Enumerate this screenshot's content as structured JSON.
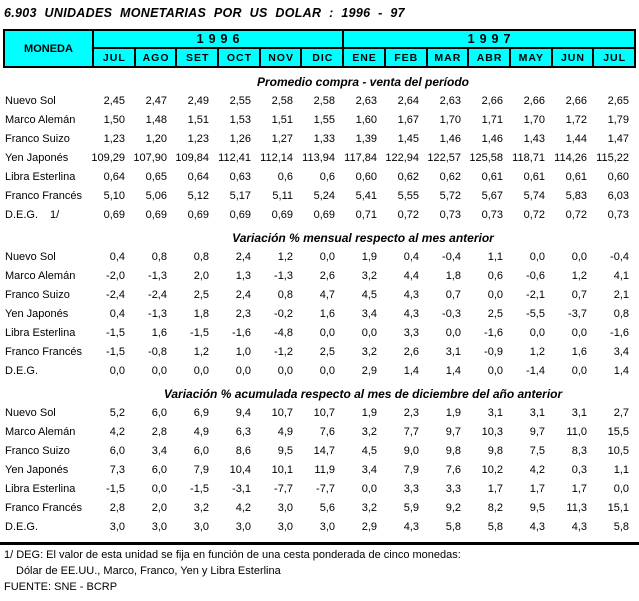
{
  "title": "6.903 UNIDADES MONETARIAS POR US DOLAR : 1996 - 97",
  "colors": {
    "header_bg": "#00FFFF",
    "border": "#000000",
    "text": "#000000"
  },
  "header": {
    "moneda_label": "MONEDA",
    "year_groups": [
      {
        "year": "1996",
        "months": [
          "JUL",
          "AGO",
          "SET",
          "OCT",
          "NOV",
          "DIC"
        ]
      },
      {
        "year": "1997",
        "months": [
          "ENE",
          "FEB",
          "MAR",
          "ABR",
          "MAY",
          "JUN",
          "JUL"
        ]
      }
    ]
  },
  "sections": [
    {
      "title": "Promedio compra - venta del período",
      "rows": [
        {
          "label": "Nuevo Sol",
          "values": [
            "2,45",
            "2,47",
            "2,49",
            "2,55",
            "2,58",
            "2,58",
            "2,63",
            "2,64",
            "2,63",
            "2,66",
            "2,66",
            "2,66",
            "2,65"
          ]
        },
        {
          "label": "Marco Alemán",
          "values": [
            "1,50",
            "1,48",
            "1,51",
            "1,53",
            "1,51",
            "1,55",
            "1,60",
            "1,67",
            "1,70",
            "1,71",
            "1,70",
            "1,72",
            "1,79"
          ]
        },
        {
          "label": "Franco Suizo",
          "values": [
            "1,23",
            "1,20",
            "1,23",
            "1,26",
            "1,27",
            "1,33",
            "1,39",
            "1,45",
            "1,46",
            "1,46",
            "1,43",
            "1,44",
            "1,47"
          ]
        },
        {
          "label": "Yen Japonés",
          "values": [
            "109,29",
            "107,90",
            "109,84",
            "112,41",
            "112,14",
            "113,94",
            "117,84",
            "122,94",
            "122,57",
            "125,58",
            "118,71",
            "114,26",
            "115,22"
          ]
        },
        {
          "label": "Libra Esterlina",
          "values": [
            "0,64",
            "0,65",
            "0,64",
            "0,63",
            "0,6",
            "0,6",
            "0,60",
            "0,62",
            "0,62",
            "0,61",
            "0,61",
            "0,61",
            "0,60"
          ]
        },
        {
          "label": "Franco Francés",
          "values": [
            "5,10",
            "5,06",
            "5,12",
            "5,17",
            "5,11",
            "5,24",
            "5,41",
            "5,55",
            "5,72",
            "5,67",
            "5,74",
            "5,83",
            "6,03"
          ]
        },
        {
          "label": "D.E.G.",
          "note": "1/",
          "values": [
            "0,69",
            "0,69",
            "0,69",
            "0,69",
            "0,69",
            "0,69",
            "0,71",
            "0,72",
            "0,73",
            "0,73",
            "0,72",
            "0,72",
            "0,73"
          ]
        }
      ]
    },
    {
      "title": "Variación % mensual respecto al mes anterior",
      "rows": [
        {
          "label": "Nuevo Sol",
          "values": [
            "0,4",
            "0,8",
            "0,8",
            "2,4",
            "1,2",
            "0,0",
            "1,9",
            "0,4",
            "-0,4",
            "1,1",
            "0,0",
            "0,0",
            "-0,4"
          ]
        },
        {
          "label": "Marco Alemán",
          "values": [
            "-2,0",
            "-1,3",
            "2,0",
            "1,3",
            "-1,3",
            "2,6",
            "3,2",
            "4,4",
            "1,8",
            "0,6",
            "-0,6",
            "1,2",
            "4,1"
          ]
        },
        {
          "label": "Franco Suizo",
          "values": [
            "-2,4",
            "-2,4",
            "2,5",
            "2,4",
            "0,8",
            "4,7",
            "4,5",
            "4,3",
            "0,7",
            "0,0",
            "-2,1",
            "0,7",
            "2,1"
          ]
        },
        {
          "label": "Yen Japonés",
          "values": [
            "0,4",
            "-1,3",
            "1,8",
            "2,3",
            "-0,2",
            "1,6",
            "3,4",
            "4,3",
            "-0,3",
            "2,5",
            "-5,5",
            "-3,7",
            "0,8"
          ]
        },
        {
          "label": "Libra Esterlina",
          "values": [
            "-1,5",
            "1,6",
            "-1,5",
            "-1,6",
            "-4,8",
            "0,0",
            "0,0",
            "3,3",
            "0,0",
            "-1,6",
            "0,0",
            "0,0",
            "-1,6"
          ]
        },
        {
          "label": "Franco Francés",
          "values": [
            "-1,5",
            "-0,8",
            "1,2",
            "1,0",
            "-1,2",
            "2,5",
            "3,2",
            "2,6",
            "3,1",
            "-0,9",
            "1,2",
            "1,6",
            "3,4"
          ]
        },
        {
          "label": "D.E.G.",
          "values": [
            "0,0",
            "0,0",
            "0,0",
            "0,0",
            "0,0",
            "0,0",
            "2,9",
            "1,4",
            "1,4",
            "0,0",
            "-1,4",
            "0,0",
            "1,4"
          ]
        }
      ]
    },
    {
      "title": "Variación % acumulada respecto al mes de diciembre del año anterior",
      "rows": [
        {
          "label": "Nuevo Sol",
          "values": [
            "5,2",
            "6,0",
            "6,9",
            "9,4",
            "10,7",
            "10,7",
            "1,9",
            "2,3",
            "1,9",
            "3,1",
            "3,1",
            "3,1",
            "2,7"
          ]
        },
        {
          "label": "Marco Alemán",
          "values": [
            "4,2",
            "2,8",
            "4,9",
            "6,3",
            "4,9",
            "7,6",
            "3,2",
            "7,7",
            "9,7",
            "10,3",
            "9,7",
            "11,0",
            "15,5"
          ]
        },
        {
          "label": "Franco Suizo",
          "values": [
            "6,0",
            "3,4",
            "6,0",
            "8,6",
            "9,5",
            "14,7",
            "4,5",
            "9,0",
            "9,8",
            "9,8",
            "7,5",
            "8,3",
            "10,5"
          ]
        },
        {
          "label": "Yen Japonés",
          "values": [
            "7,3",
            "6,0",
            "7,9",
            "10,4",
            "10,1",
            "11,9",
            "3,4",
            "7,9",
            "7,6",
            "10,2",
            "4,2",
            "0,3",
            "1,1"
          ]
        },
        {
          "label": "Libra Esterlina",
          "values": [
            "-1,5",
            "0,0",
            "-1,5",
            "-3,1",
            "-7,7",
            "-7,7",
            "0,0",
            "3,3",
            "3,3",
            "1,7",
            "1,7",
            "1,7",
            "0,0"
          ]
        },
        {
          "label": "Franco Francés",
          "values": [
            "2,8",
            "2,0",
            "3,2",
            "4,2",
            "3,0",
            "5,6",
            "3,2",
            "5,9",
            "9,2",
            "8,2",
            "9,5",
            "11,3",
            "15,1"
          ]
        },
        {
          "label": "D.E.G.",
          "values": [
            "3,0",
            "3,0",
            "3,0",
            "3,0",
            "3,0",
            "3,0",
            "2,9",
            "4,3",
            "5,8",
            "5,8",
            "4,3",
            "4,3",
            "5,8"
          ]
        }
      ]
    }
  ],
  "footnotes": [
    "1/ DEG: El valor de esta unidad se fija en función de una cesta ponderada de cinco monedas:",
    "Dólar de EE.UU., Marco, Franco, Yen y Libra Esterlina",
    "FUENTE: SNE - BCRP"
  ]
}
